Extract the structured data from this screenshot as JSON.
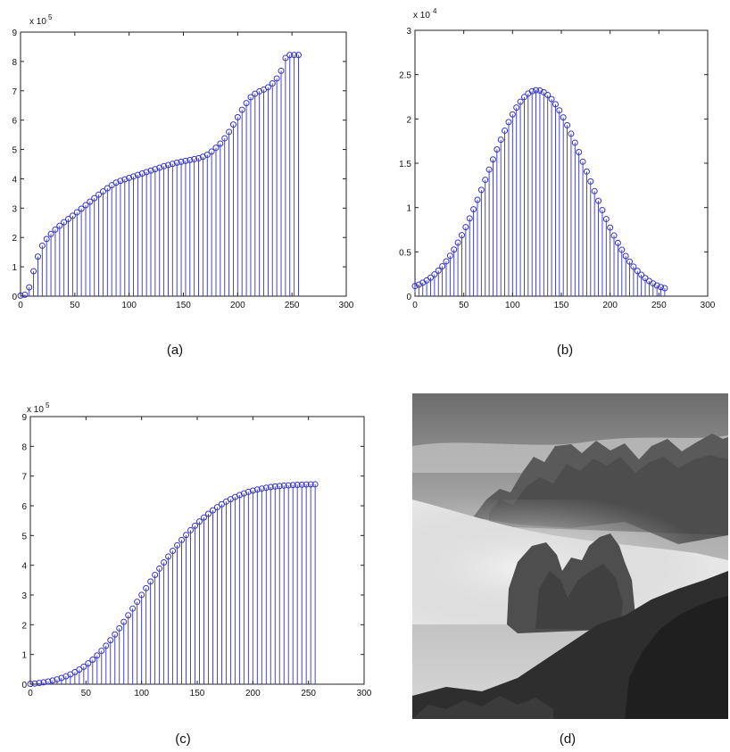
{
  "chart_data": [
    {
      "type": "stem",
      "x_tick_labels": [
        "0",
        "50",
        "100",
        "150",
        "200",
        "250",
        "300"
      ],
      "y_tick_labels": [
        "0",
        "1",
        "2",
        "3",
        "4",
        "5",
        "6",
        "7",
        "8",
        "9"
      ],
      "xlim": [
        0,
        300
      ],
      "ylim": [
        0,
        9
      ],
      "y_exponent_base": "x 10",
      "y_exponent_power": "5",
      "caption": "(a)",
      "marker": "circle",
      "series": [
        {
          "x": [
            0,
            4,
            8,
            12,
            16,
            20,
            24,
            28,
            32,
            36,
            40,
            44,
            48,
            52,
            56,
            60,
            64,
            68,
            72,
            76,
            80,
            84,
            88,
            92,
            96,
            100,
            104,
            108,
            112,
            116,
            120,
            124,
            128,
            132,
            136,
            140,
            144,
            148,
            152,
            156,
            160,
            164,
            168,
            172,
            176,
            180,
            184,
            188,
            192,
            196,
            200,
            204,
            208,
            212,
            216,
            220,
            224,
            228,
            232,
            236,
            240,
            244,
            248,
            252,
            256
          ],
          "y": [
            0.02,
            0.05,
            0.3,
            0.85,
            1.35,
            1.72,
            1.95,
            2.12,
            2.27,
            2.4,
            2.52,
            2.63,
            2.74,
            2.86,
            2.98,
            3.1,
            3.22,
            3.34,
            3.46,
            3.57,
            3.68,
            3.78,
            3.87,
            3.93,
            3.98,
            4.03,
            4.08,
            4.13,
            4.18,
            4.23,
            4.28,
            4.33,
            4.38,
            4.43,
            4.47,
            4.51,
            4.55,
            4.58,
            4.61,
            4.64,
            4.67,
            4.7,
            4.75,
            4.82,
            4.93,
            5.06,
            5.2,
            5.38,
            5.6,
            5.85,
            6.1,
            6.35,
            6.58,
            6.78,
            6.9,
            6.98,
            7.04,
            7.12,
            7.25,
            7.42,
            7.68,
            8.12,
            8.22,
            8.22,
            8.22
          ]
        }
      ]
    },
    {
      "type": "stem",
      "x_tick_labels": [
        "0",
        "50",
        "100",
        "150",
        "200",
        "250",
        "300"
      ],
      "y_tick_labels": [
        "0",
        "0.5",
        "1",
        "1.5",
        "2",
        "2.5",
        "3"
      ],
      "xlim": [
        0,
        300
      ],
      "ylim": [
        0,
        3
      ],
      "y_exponent_base": "x 10",
      "y_exponent_power": "4",
      "caption": "(b)",
      "marker": "circle",
      "series": [
        {
          "x": [
            0,
            4,
            8,
            12,
            16,
            20,
            24,
            28,
            32,
            36,
            40,
            44,
            48,
            52,
            56,
            60,
            64,
            68,
            72,
            76,
            80,
            84,
            88,
            92,
            96,
            100,
            104,
            108,
            112,
            116,
            120,
            124,
            128,
            132,
            136,
            140,
            144,
            148,
            152,
            156,
            160,
            164,
            168,
            172,
            176,
            180,
            184,
            188,
            192,
            196,
            200,
            204,
            208,
            212,
            216,
            220,
            224,
            228,
            232,
            236,
            240,
            244,
            248,
            252,
            256
          ],
          "y": [
            0.114,
            0.131,
            0.152,
            0.178,
            0.209,
            0.246,
            0.288,
            0.337,
            0.393,
            0.456,
            0.526,
            0.604,
            0.688,
            0.779,
            0.877,
            0.98,
            1.087,
            1.199,
            1.313,
            1.428,
            1.543,
            1.656,
            1.765,
            1.868,
            1.964,
            2.051,
            2.128,
            2.194,
            2.247,
            2.287,
            2.313,
            2.324,
            2.32,
            2.302,
            2.27,
            2.224,
            2.166,
            2.097,
            2.017,
            1.929,
            1.833,
            1.732,
            1.626,
            1.517,
            1.406,
            1.295,
            1.185,
            1.076,
            0.971,
            0.87,
            0.774,
            0.684,
            0.6,
            0.523,
            0.453,
            0.39,
            0.334,
            0.285,
            0.241,
            0.204,
            0.171,
            0.144,
            0.121,
            0.102,
            0.09
          ]
        }
      ]
    },
    {
      "type": "stem",
      "x_tick_labels": [
        "0",
        "50",
        "100",
        "150",
        "200",
        "250",
        "300"
      ],
      "y_tick_labels": [
        "0",
        "1",
        "2",
        "3",
        "4",
        "5",
        "6",
        "7",
        "8",
        "9"
      ],
      "xlim": [
        0,
        300
      ],
      "ylim": [
        0,
        9
      ],
      "y_exponent_base": "x 10",
      "y_exponent_power": "5",
      "caption": "(c)",
      "marker": "circle",
      "series": [
        {
          "x": [
            0,
            4,
            8,
            12,
            16,
            20,
            24,
            28,
            32,
            36,
            40,
            44,
            48,
            52,
            56,
            60,
            64,
            68,
            72,
            76,
            80,
            84,
            88,
            92,
            96,
            100,
            104,
            108,
            112,
            116,
            120,
            124,
            128,
            132,
            136,
            140,
            144,
            148,
            152,
            156,
            160,
            164,
            168,
            172,
            176,
            180,
            184,
            188,
            192,
            196,
            200,
            204,
            208,
            212,
            216,
            220,
            224,
            228,
            232,
            236,
            240,
            244,
            248,
            252,
            256
          ],
          "y": [
            0.011,
            0.024,
            0.042,
            0.064,
            0.091,
            0.124,
            0.163,
            0.21,
            0.265,
            0.33,
            0.405,
            0.491,
            0.589,
            0.701,
            0.826,
            0.967,
            1.123,
            1.293,
            1.477,
            1.673,
            1.88,
            2.095,
            2.317,
            2.544,
            2.773,
            3.002,
            3.23,
            3.454,
            3.674,
            3.887,
            4.095,
            4.294,
            4.486,
            4.671,
            4.848,
            5.017,
            5.177,
            5.328,
            5.471,
            5.605,
            5.73,
            5.846,
            5.953,
            6.052,
            6.141,
            6.222,
            6.295,
            6.36,
            6.417,
            6.467,
            6.51,
            6.547,
            6.579,
            6.606,
            6.629,
            6.648,
            6.664,
            6.677,
            6.688,
            6.697,
            6.704,
            6.71,
            6.715,
            6.719,
            6.722
          ]
        }
      ]
    }
  ],
  "image_d_caption": "(d)"
}
